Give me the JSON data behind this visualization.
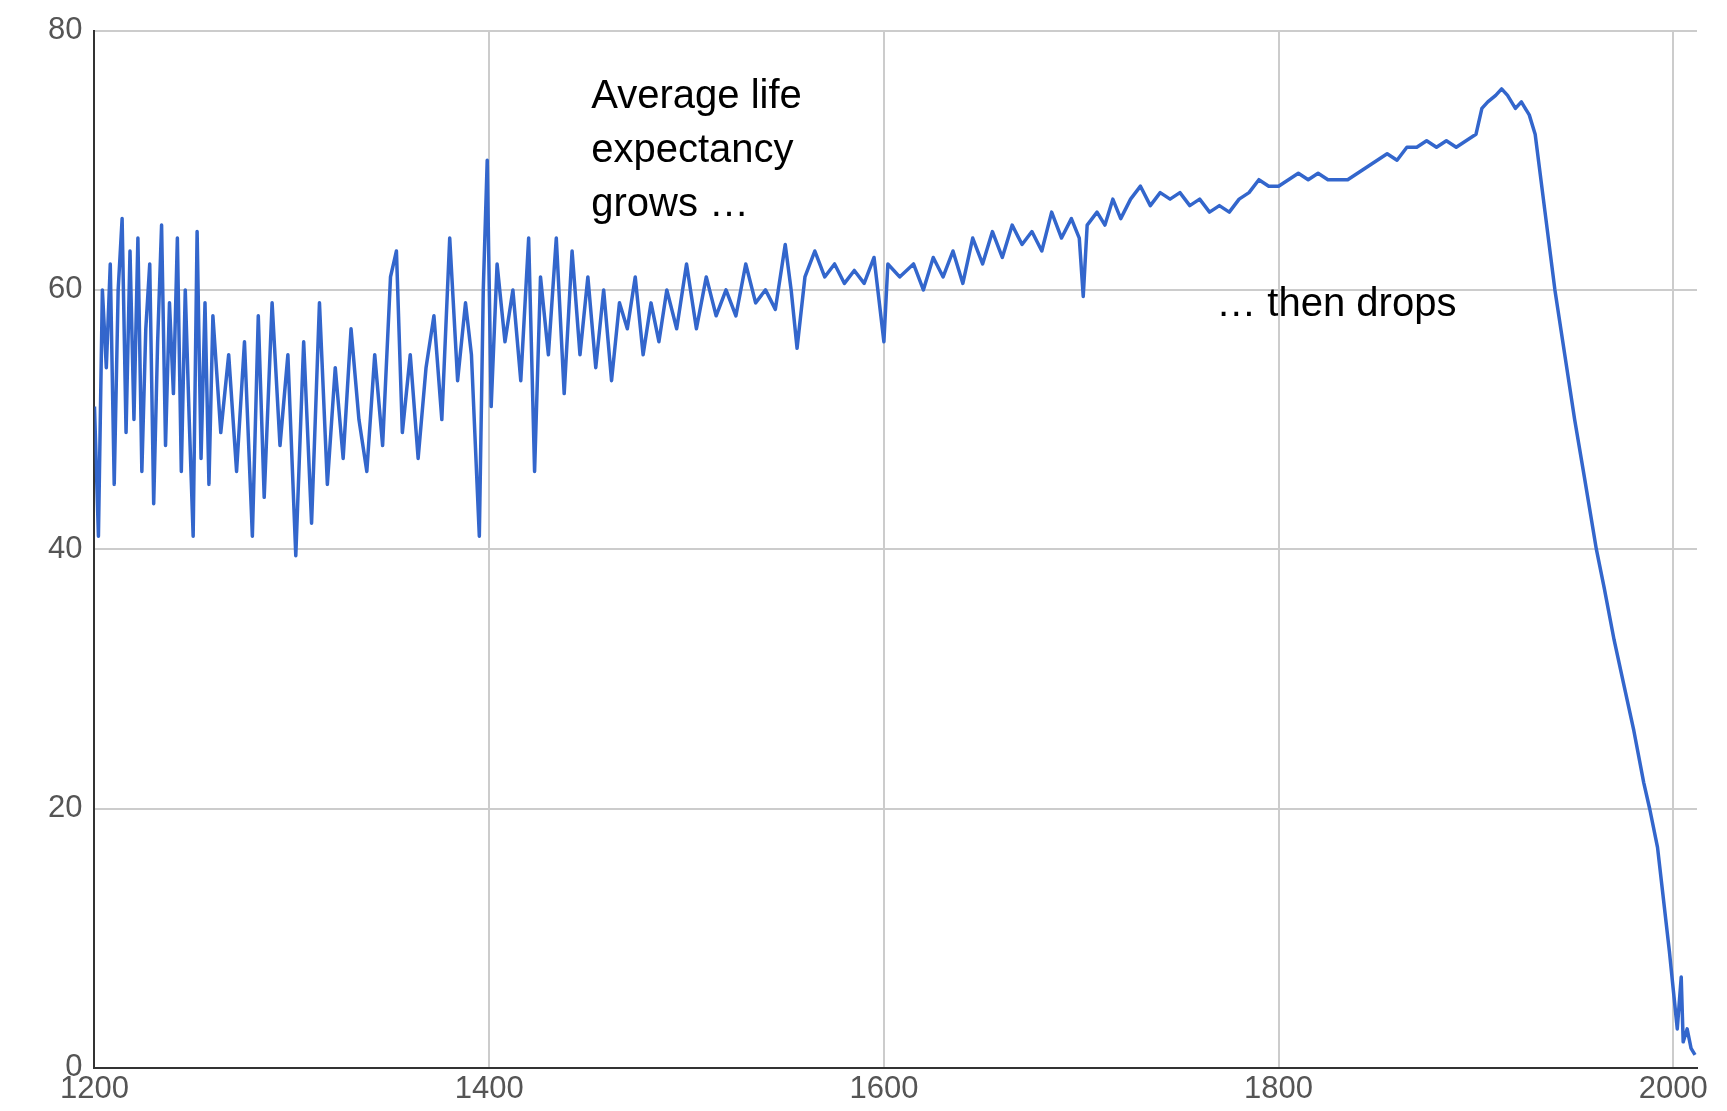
{
  "chart_data": {
    "type": "line",
    "xlim": [
      1200,
      2012
    ],
    "xticks": [
      1200,
      1400,
      1600,
      1800,
      2000
    ],
    "ylim": [
      0,
      80
    ],
    "yticks": [
      0,
      20,
      40,
      60,
      80
    ],
    "grid": true,
    "marker": "none",
    "line_style": "solid",
    "annotations": [
      "Average life expectancy grows …",
      "… then drops"
    ],
    "series": [
      {
        "color": "#3366cc",
        "x": [
          1200,
          1202,
          1204,
          1206,
          1208,
          1210,
          1212,
          1214,
          1216,
          1218,
          1220,
          1222,
          1224,
          1226,
          1228,
          1230,
          1232,
          1234,
          1236,
          1238,
          1240,
          1242,
          1244,
          1246,
          1248,
          1250,
          1252,
          1254,
          1256,
          1258,
          1260,
          1264,
          1268,
          1272,
          1276,
          1280,
          1283,
          1286,
          1290,
          1294,
          1298,
          1302,
          1306,
          1310,
          1314,
          1318,
          1322,
          1326,
          1330,
          1334,
          1338,
          1342,
          1346,
          1350,
          1353,
          1356,
          1360,
          1364,
          1368,
          1372,
          1376,
          1380,
          1384,
          1388,
          1391,
          1395,
          1397,
          1399,
          1401,
          1404,
          1408,
          1412,
          1416,
          1420,
          1423,
          1426,
          1430,
          1434,
          1438,
          1442,
          1446,
          1450,
          1454,
          1458,
          1462,
          1466,
          1470,
          1474,
          1478,
          1482,
          1486,
          1490,
          1495,
          1500,
          1505,
          1510,
          1515,
          1520,
          1525,
          1530,
          1535,
          1540,
          1545,
          1550,
          1553,
          1556,
          1560,
          1565,
          1570,
          1575,
          1580,
          1585,
          1590,
          1595,
          1600,
          1602,
          1608,
          1615,
          1620,
          1625,
          1630,
          1635,
          1640,
          1645,
          1650,
          1655,
          1660,
          1665,
          1670,
          1675,
          1680,
          1685,
          1690,
          1695,
          1699,
          1701,
          1703,
          1708,
          1712,
          1716,
          1720,
          1725,
          1730,
          1735,
          1740,
          1745,
          1750,
          1755,
          1760,
          1765,
          1770,
          1775,
          1780,
          1785,
          1790,
          1795,
          1800,
          1805,
          1810,
          1815,
          1820,
          1825,
          1830,
          1835,
          1840,
          1845,
          1850,
          1855,
          1860,
          1865,
          1870,
          1875,
          1880,
          1885,
          1890,
          1895,
          1900,
          1903,
          1906,
          1910,
          1913,
          1916,
          1920,
          1923,
          1927,
          1930,
          1935,
          1940,
          1945,
          1950,
          1955,
          1961,
          1965,
          1970,
          1975,
          1980,
          1985,
          1988,
          1992,
          1995,
          1998,
          2000,
          2002,
          2004,
          2005,
          2007,
          2009,
          2011
        ],
        "values": [
          51,
          41,
          60,
          54,
          62,
          45,
          60,
          65.5,
          49,
          63,
          50,
          64,
          46,
          57,
          62,
          43.5,
          56,
          65,
          48,
          59,
          52,
          64,
          46,
          60,
          50,
          41,
          64.5,
          47,
          59,
          45,
          58,
          49,
          55,
          46,
          56,
          41,
          58,
          44,
          59,
          48,
          55,
          39.5,
          56,
          42,
          59,
          45,
          54,
          47,
          57,
          50,
          46,
          55,
          48,
          61,
          63,
          49,
          55,
          47,
          54,
          58,
          50,
          64,
          53,
          59,
          55,
          41,
          60,
          70,
          51,
          62,
          56,
          60,
          53,
          64,
          46,
          61,
          55,
          64,
          52,
          63,
          55,
          61,
          54,
          60,
          53,
          59,
          57,
          61,
          55,
          59,
          56,
          60,
          57,
          62,
          57,
          61,
          58,
          60,
          58,
          62,
          59,
          60,
          58.5,
          63.5,
          60,
          55.5,
          61,
          63,
          61,
          62,
          60.5,
          61.5,
          60.5,
          62.5,
          56,
          62,
          61,
          62,
          60,
          62.5,
          61,
          63,
          60.5,
          64,
          62,
          64.5,
          62.5,
          65,
          63.5,
          64.5,
          63,
          66,
          64,
          65.5,
          64,
          59.5,
          65,
          66,
          65,
          67,
          65.5,
          67,
          68,
          66.5,
          67.5,
          67,
          67.5,
          66.5,
          67,
          66,
          66.5,
          66,
          67,
          67.5,
          68.5,
          68,
          68,
          68.5,
          69,
          68.5,
          69,
          68.5,
          68.5,
          68.5,
          69,
          69.5,
          70,
          70.5,
          70,
          71,
          71,
          71.5,
          71,
          71.5,
          71,
          71.5,
          72,
          74,
          74.5,
          75,
          75.5,
          75,
          74,
          74.5,
          73.5,
          72,
          66,
          60,
          55,
          50,
          45.5,
          40,
          37,
          33,
          29.5,
          26,
          22,
          20,
          17,
          13,
          9,
          6,
          3,
          7,
          2,
          3,
          1.5,
          1
        ]
      }
    ]
  }
}
